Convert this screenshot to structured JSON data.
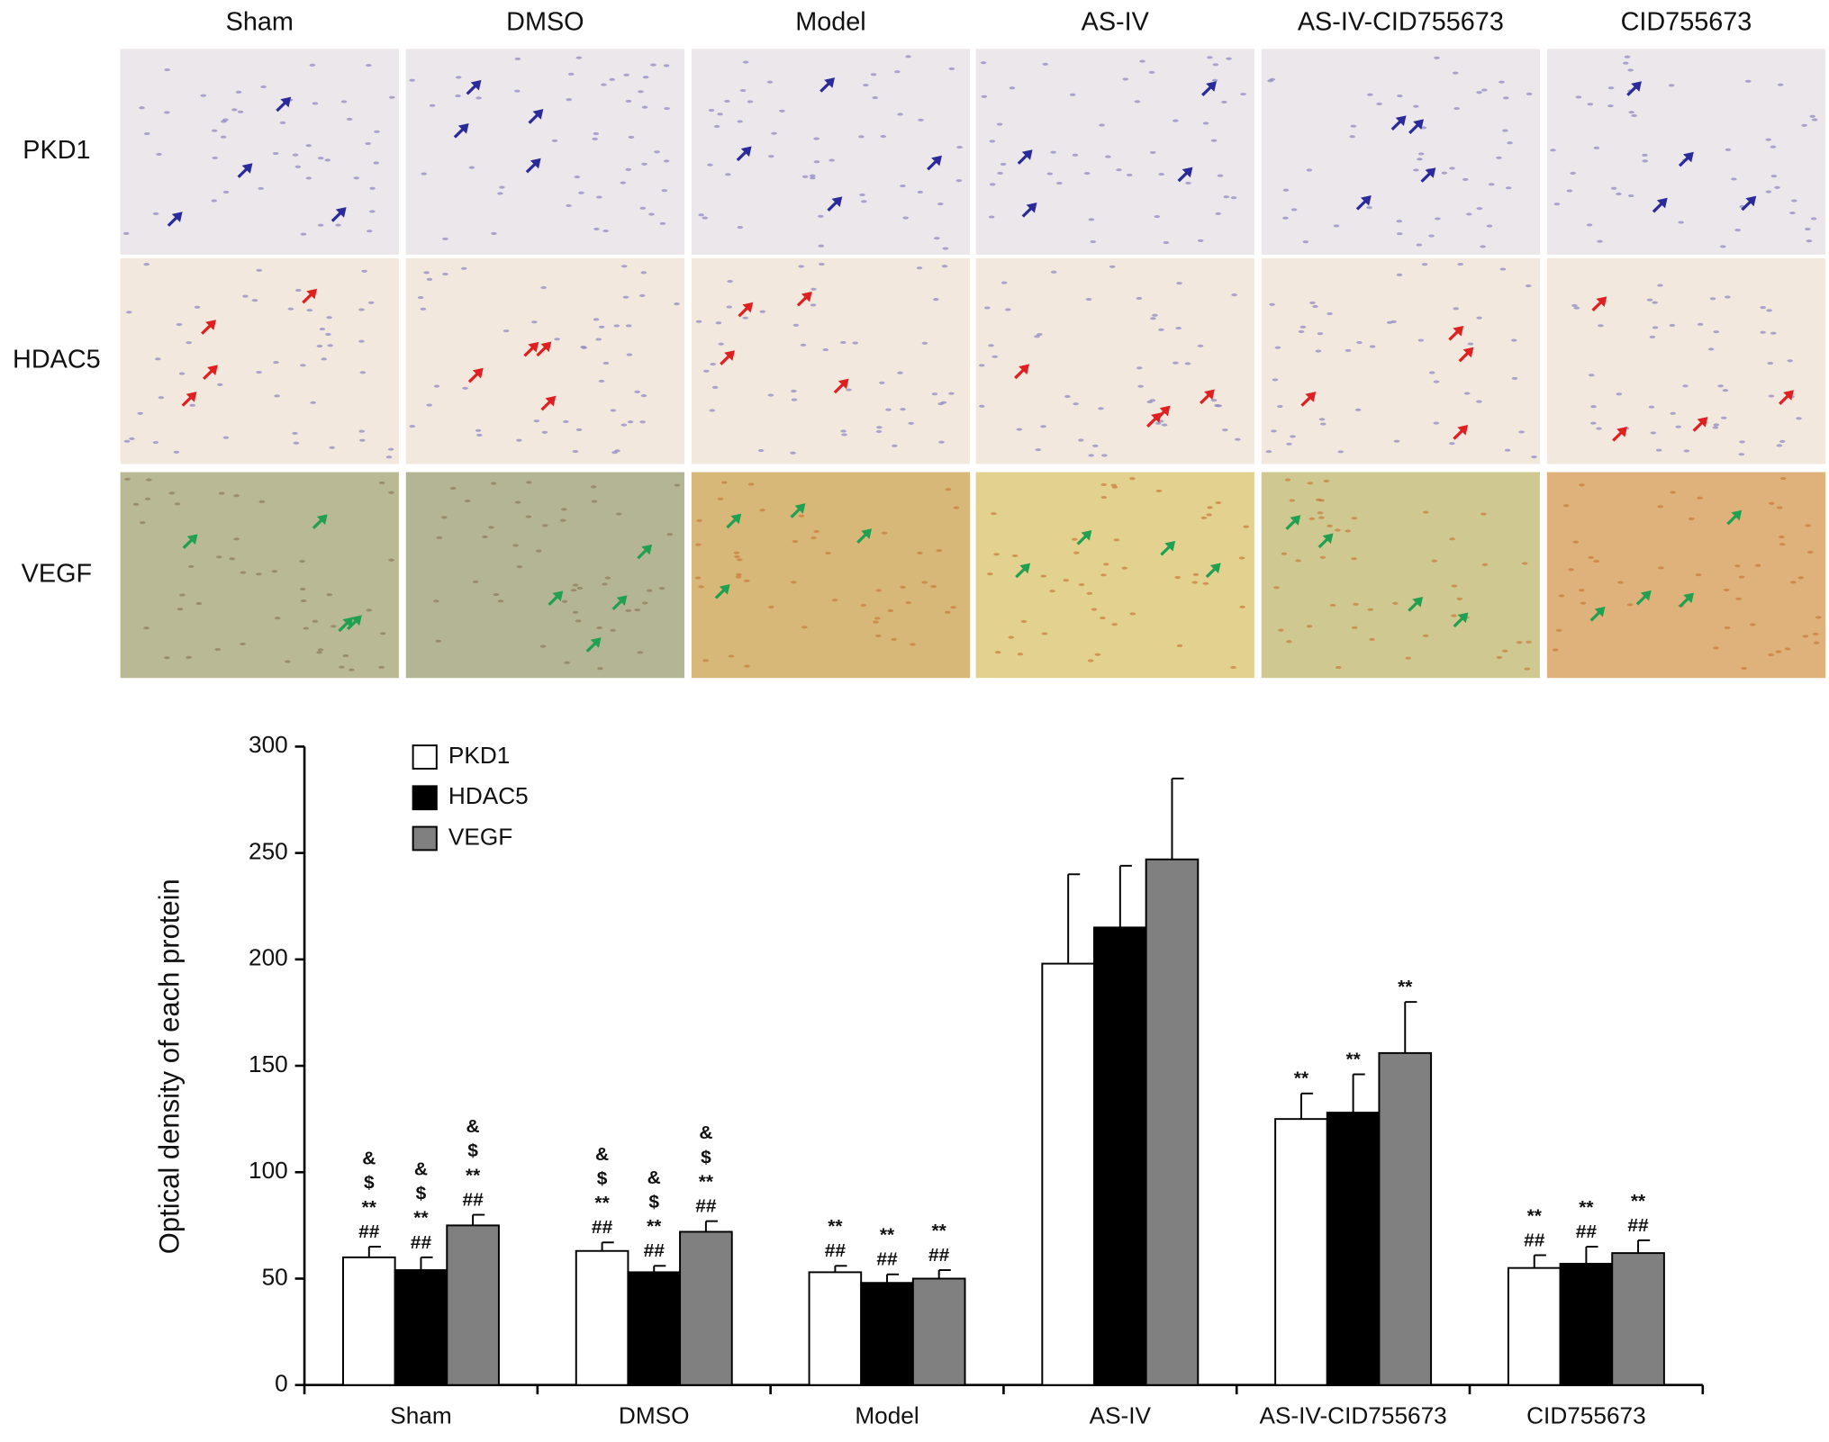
{
  "figure": {
    "columns": [
      "Sham",
      "DMSO",
      "Model",
      "AS-IV",
      "AS-IV-CID755673",
      "CID755673"
    ],
    "rows": [
      "PKD1",
      "HDAC5",
      "VEGF"
    ]
  },
  "chart_data": {
    "type": "bar",
    "ylabel": "Optical density of each protein",
    "categories": [
      "Sham",
      "DMSO",
      "Model",
      "AS-IV",
      "AS-IV-CID755673",
      "CID755673"
    ],
    "ylim": [
      0,
      300
    ],
    "yticks": [
      0,
      50,
      100,
      150,
      200,
      250,
      300
    ],
    "grid": false,
    "series": [
      {
        "name": "PKD1",
        "color": "#ffffff",
        "values": [
          60,
          63,
          53,
          198,
          125,
          55
        ],
        "errors": [
          5,
          4,
          3,
          42,
          12,
          6
        ],
        "annotations": [
          [
            "&",
            "$",
            "**",
            "##"
          ],
          [
            "&",
            "$",
            "**",
            "##"
          ],
          [
            "**",
            "##"
          ],
          [],
          [
            "**"
          ],
          [
            "**",
            "##"
          ]
        ]
      },
      {
        "name": "HDAC5",
        "color": "#000000",
        "values": [
          54,
          53,
          48,
          215,
          128,
          57
        ],
        "errors": [
          6,
          3,
          4,
          29,
          18,
          8
        ],
        "annotations": [
          [
            "&",
            "$",
            "**",
            "##"
          ],
          [
            "&",
            "$",
            "**",
            "##"
          ],
          [
            "**",
            "##"
          ],
          [],
          [
            "**"
          ],
          [
            "**",
            "##"
          ]
        ]
      },
      {
        "name": "VEGF",
        "color": "#808080",
        "values": [
          75,
          72,
          50,
          247,
          156,
          62
        ],
        "errors": [
          5,
          5,
          4,
          38,
          24,
          6
        ],
        "annotations": [
          [
            "&",
            "$",
            "**",
            "##"
          ],
          [
            "&",
            "$",
            "**",
            "##"
          ],
          [
            "**",
            "##"
          ],
          [],
          [
            "**"
          ],
          [
            "**",
            "##"
          ]
        ]
      }
    ]
  }
}
